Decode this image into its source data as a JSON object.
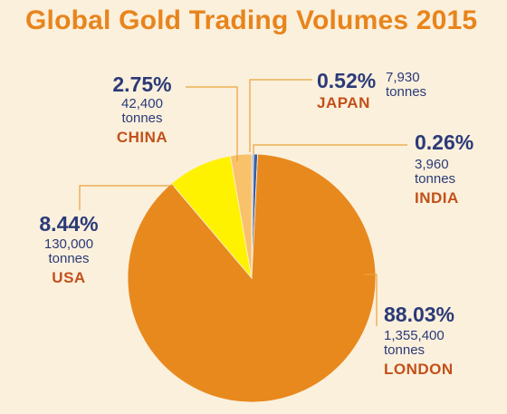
{
  "chart_data": {
    "type": "pie",
    "title": "Global Gold Trading Volumes 2015",
    "slices": [
      {
        "name": "LONDON",
        "percent": "88.03%",
        "value": 1355400,
        "volume_label": "1,355,400",
        "unit": "tonnes",
        "color": "#e8891e"
      },
      {
        "name": "USA",
        "percent": "8.44%",
        "value": 130000,
        "volume_label": "130,000",
        "unit": "tonnes",
        "color": "#fff200"
      },
      {
        "name": "CHINA",
        "percent": "2.75%",
        "value": 42400,
        "volume_label": "42,400",
        "unit": "tonnes",
        "color": "#f9c16a"
      },
      {
        "name": "JAPAN",
        "percent": "0.52%",
        "value": 7930,
        "volume_label": "7,930",
        "unit": "tonnes",
        "color": "#3a5ea8"
      },
      {
        "name": "INDIA",
        "percent": "0.26%",
        "value": 3960,
        "volume_label": "3,960",
        "unit": "tonnes",
        "color": "#9fb8dc"
      }
    ],
    "leader_color": "#e8a23a"
  }
}
